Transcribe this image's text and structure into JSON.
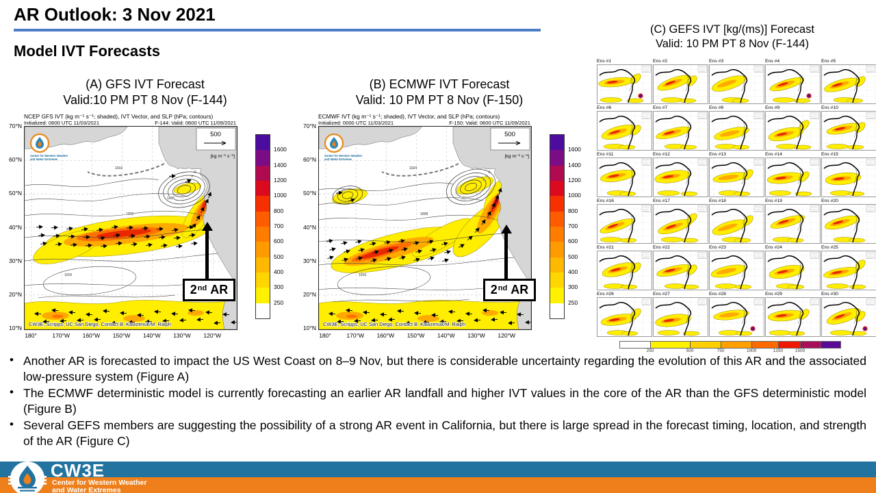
{
  "header": {
    "title": "AR Outlook: 3 Nov 2021",
    "subtitle": "Model IVT Forecasts"
  },
  "accent": {
    "underline": "#4a7dc5"
  },
  "bullet_char": "•",
  "panels": {
    "a": {
      "title1": "(A) GFS IVT Forecast",
      "title2": "Valid:10 PM PT 8 Nov (F-144)",
      "caption": "NCEP GFS IVT (kg m⁻¹ s⁻¹; shaded), IVT Vector, and SLP (hPa; contours)",
      "initialized": "Initialized: 0600 UTC 11/03/2021",
      "valid": "F-144: Valid: 0600 UTC 11/09/2021",
      "vector_ref": "500",
      "units": "[kg m⁻¹ s⁻¹]",
      "attribution": "CW3E, Scripps, UC San Diego, Contact B. Kawzenuk/M. Ralph",
      "annotation": {
        "num": "2",
        "sup": "nd",
        "word": "AR"
      }
    },
    "b": {
      "title1": "(B) ECMWF IVT Forecast",
      "title2": "Valid:  10 PM PT 8 Nov (F-150)",
      "caption": "ECMWF IVT (kg m⁻¹ s⁻¹; shaded), IVT Vector, and SLP (hPa; contours)",
      "initialized": "Initialized: 0000 UTC 11/03/2021",
      "valid": "F-150: Valid: 0600 UTC 11/09/2021",
      "vector_ref": "500",
      "units": "[kg m⁻¹ s⁻¹]",
      "attribution": "CW3E, Scripps, UC San Diego, Contact B. Kawzenuk/M. Ralph",
      "annotation": {
        "num": "2",
        "sup": "nd",
        "word": "AR"
      }
    },
    "c": {
      "title1": "(C) GEFS IVT [kg/(ms)]  Forecast",
      "title2": "Valid:  10 PM PT 8 Nov (F-144)",
      "members": [
        "Ens #1",
        "Ens #2",
        "Ens #3",
        "Ens #4",
        "Ens #5",
        "Ens #6",
        "Ens #7",
        "Ens #8",
        "Ens #9",
        "Ens #10",
        "Ens #11",
        "Ens #12",
        "Ens #13",
        "Ens #14",
        "Ens #15",
        "Ens #16",
        "Ens #17",
        "Ens #18",
        "Ens #19",
        "Ens #20",
        "Ens #21",
        "Ens #22",
        "Ens #23",
        "Ens #24",
        "Ens #25",
        "Ens #26",
        "Ens #27",
        "Ens #28",
        "Ens #29",
        "Ens #30"
      ],
      "colorbar_ticks": [
        "250",
        "500",
        "750",
        "1000",
        "1250",
        "1500"
      ]
    }
  },
  "axes": {
    "lat": [
      "70°N",
      "60°N",
      "50°N",
      "40°N",
      "30°N",
      "20°N",
      "10°N"
    ],
    "lon": [
      "180°",
      "170°W",
      "160°W",
      "150°W",
      "140°W",
      "130°W",
      "120°W"
    ]
  },
  "colorbar_ab": {
    "labels": [
      "1600",
      "1400",
      "1200",
      "1000",
      "800",
      "700",
      "600",
      "500",
      "400",
      "300",
      "250"
    ],
    "colors": [
      "#4c0d9e",
      "#7c0b86",
      "#b00a50",
      "#dc0a1e",
      "#f63000",
      "#ff5c00",
      "#ff7c00",
      "#ff9a00",
      "#ffb800",
      "#ffd600",
      "#fff200",
      "#ffffff"
    ]
  },
  "colorbar_c": {
    "colors": [
      "#ffffff",
      "#fff200",
      "#ffd000",
      "#ffa000",
      "#ff6a00",
      "#f01800",
      "#a80f58",
      "#5a0a96"
    ],
    "widths": [
      14,
      18,
      14,
      14,
      12,
      10,
      9,
      9
    ]
  },
  "map_colors": {
    "land": "#d6d6d6",
    "grid": "#bbbbbb",
    "yellow": "#ffee00",
    "olive": "#9a8c00",
    "orange": "#ffaa00",
    "deep_orange": "#ff7000",
    "red": "#e82800",
    "dark_red": "#b00020",
    "purple": "#5a0a96"
  },
  "slp_labels": {
    "a": [
      "1016",
      "1008",
      "1000",
      "1016"
    ],
    "b": [
      "1016",
      "1008",
      "992",
      "1024"
    ]
  },
  "logo_caption": [
    "Center for Western Weather",
    "and Water Extremes"
  ],
  "bullets": [
    "Another AR is forecasted to impact the US West Coast on 8–9 Nov, but there is considerable uncertainty regarding the evolution of this AR and the associated low-pressure system (Figure A)",
    "The ECMWF deterministic model is currently forecasting an earlier AR landfall and higher IVT values in the core of the AR than the GFS deterministic model (Figure B)",
    "Several GEFS members are suggesting the possibility of a strong AR event in California, but there is large spread in the forecast timing, location, and strength of the AR (Figure C)"
  ],
  "footer": {
    "org": "CW3E",
    "line1": "Center for Western Weather",
    "line2": "and Water Extremes",
    "blue": "#2273a0",
    "orange": "#ef7f1a"
  }
}
